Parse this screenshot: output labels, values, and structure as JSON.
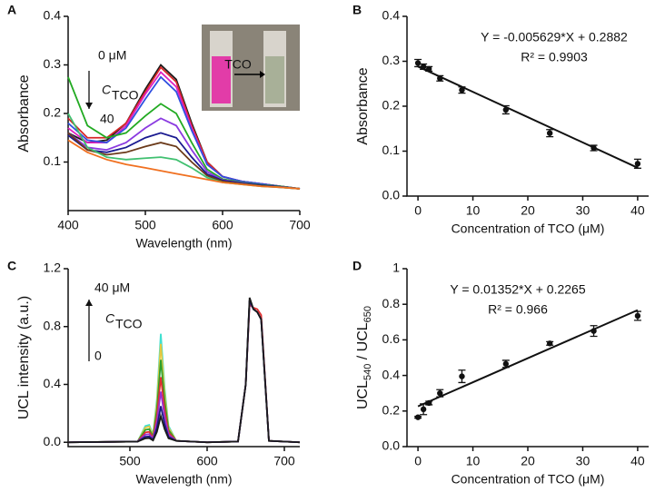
{
  "chart_data": [
    {
      "type": "line",
      "panel_label": "A",
      "xlabel": "Wavelength (nm)",
      "ylabel": [
        "Absorbance"
      ],
      "x": [
        400,
        425,
        450,
        475,
        500,
        520,
        540,
        560,
        580,
        600,
        625,
        650,
        675,
        700
      ],
      "xlim": [
        400,
        700
      ],
      "xticks": [
        400,
        500,
        600,
        700
      ],
      "ylim": [
        0,
        0.4
      ],
      "yticks": [
        0.1,
        0.2,
        0.3,
        0.4
      ],
      "annotations": [
        "0 μM",
        "C",
        "TCO",
        "40",
        "TCO"
      ],
      "series": [
        {
          "color": "#1a1a1a",
          "values": [
            0.16,
            0.14,
            0.145,
            0.18,
            0.25,
            0.3,
            0.27,
            0.18,
            0.1,
            0.07,
            0.06,
            0.055,
            0.05,
            0.045
          ]
        },
        {
          "color": "#d62728",
          "values": [
            0.19,
            0.15,
            0.15,
            0.18,
            0.245,
            0.295,
            0.265,
            0.175,
            0.1,
            0.07,
            0.06,
            0.055,
            0.05,
            0.045
          ]
        },
        {
          "color": "#e020c0",
          "values": [
            0.17,
            0.14,
            0.14,
            0.175,
            0.24,
            0.285,
            0.255,
            0.17,
            0.095,
            0.07,
            0.06,
            0.055,
            0.05,
            0.045
          ]
        },
        {
          "color": "#3050e0",
          "values": [
            0.18,
            0.145,
            0.14,
            0.17,
            0.23,
            0.275,
            0.245,
            0.165,
            0.095,
            0.07,
            0.06,
            0.055,
            0.05,
            0.045
          ]
        },
        {
          "color": "#22aa22",
          "values": [
            0.275,
            0.175,
            0.15,
            0.16,
            0.195,
            0.22,
            0.2,
            0.14,
            0.085,
            0.065,
            0.058,
            0.053,
            0.05,
            0.045
          ]
        },
        {
          "color": "#8a3ae0",
          "values": [
            0.16,
            0.13,
            0.125,
            0.14,
            0.17,
            0.19,
            0.175,
            0.125,
            0.08,
            0.063,
            0.057,
            0.052,
            0.049,
            0.045
          ]
        },
        {
          "color": "#1a1a90",
          "values": [
            0.155,
            0.125,
            0.12,
            0.13,
            0.15,
            0.16,
            0.15,
            0.11,
            0.075,
            0.062,
            0.056,
            0.052,
            0.049,
            0.045
          ]
        },
        {
          "color": "#6b3a1a",
          "values": [
            0.16,
            0.125,
            0.115,
            0.12,
            0.132,
            0.14,
            0.132,
            0.1,
            0.072,
            0.06,
            0.055,
            0.051,
            0.048,
            0.045
          ]
        },
        {
          "color": "#40c070",
          "values": [
            0.2,
            0.13,
            0.11,
            0.105,
            0.108,
            0.11,
            0.105,
            0.088,
            0.068,
            0.058,
            0.054,
            0.05,
            0.048,
            0.045
          ]
        },
        {
          "color": "#f07020",
          "values": [
            0.145,
            0.12,
            0.105,
            0.095,
            0.088,
            0.082,
            0.076,
            0.07,
            0.064,
            0.058,
            0.054,
            0.05,
            0.048,
            0.045
          ]
        }
      ]
    },
    {
      "type": "scatter",
      "panel_label": "B",
      "xlabel": "Concentration of TCO (μM)",
      "ylabel": [
        "Absorbance"
      ],
      "x": [
        0,
        1,
        2,
        4,
        8,
        16,
        24,
        32,
        40
      ],
      "values": [
        0.296,
        0.288,
        0.283,
        0.262,
        0.236,
        0.192,
        0.14,
        0.107,
        0.072
      ],
      "errors": [
        0.008,
        0.006,
        0.005,
        0.006,
        0.007,
        0.009,
        0.008,
        0.006,
        0.01
      ],
      "fit": {
        "x": [
          0,
          40
        ],
        "values": [
          0.2882,
          0.06304
        ]
      },
      "annotations": [
        "Y =  -0.005629*X + 0.2882",
        "R² = 0.9903"
      ],
      "xlim": [
        -2,
        42
      ],
      "xticks": [
        0,
        10,
        20,
        30,
        40
      ],
      "ylim": [
        0,
        0.4
      ],
      "yticks": [
        {
          "value": 0,
          "label": "0.0"
        },
        0.1,
        0.2,
        0.3,
        0.4
      ]
    },
    {
      "type": "line",
      "panel_label": "C",
      "xlabel": "Wavelength (nm)",
      "ylabel": [
        "UCL intensity (a.u.)"
      ],
      "x": [
        420,
        510,
        520,
        525,
        530,
        535,
        540,
        545,
        550,
        560,
        600,
        640,
        650,
        655,
        660,
        665,
        670,
        680,
        720
      ],
      "xlim": [
        420,
        720
      ],
      "xticks": [
        500,
        600,
        700
      ],
      "ylim": [
        -0.03,
        1.2
      ],
      "yticks": [
        {
          "value": 0,
          "label": "0.0"
        },
        0.4,
        0.8,
        1.2
      ],
      "annotations": [
        "40 μM",
        "C",
        "TCO",
        "0"
      ],
      "series": [
        {
          "color": "#40e0d0",
          "values": [
            0,
            0.005,
            0.113,
            0.12,
            0.053,
            0.3,
            0.75,
            0.375,
            0.113,
            0.01,
            0,
            0.005,
            0.4,
            0.98,
            0.92,
            0.9,
            0.85,
            0.01,
            0
          ]
        },
        {
          "color": "#e6c840",
          "values": [
            0,
            0.005,
            0.102,
            0.109,
            0.048,
            0.272,
            0.68,
            0.34,
            0.102,
            0.01,
            0,
            0.005,
            0.4,
            0.98,
            0.92,
            0.9,
            0.85,
            0.01,
            0
          ]
        },
        {
          "color": "#2ca02c",
          "values": [
            0,
            0.005,
            0.086,
            0.091,
            0.04,
            0.228,
            0.57,
            0.285,
            0.086,
            0.01,
            0,
            0.005,
            0.4,
            0.98,
            0.92,
            0.9,
            0.85,
            0.01,
            0
          ]
        },
        {
          "color": "#e03030",
          "values": [
            0,
            0.005,
            0.068,
            0.072,
            0.032,
            0.18,
            0.45,
            0.225,
            0.068,
            0.01,
            0,
            0.005,
            0.4,
            0.95,
            0.93,
            0.92,
            0.88,
            0.01,
            0
          ]
        },
        {
          "color": "#9b30d0",
          "values": [
            0,
            0.005,
            0.053,
            0.056,
            0.025,
            0.14,
            0.35,
            0.175,
            0.053,
            0.01,
            0,
            0.005,
            0.4,
            0.98,
            0.92,
            0.9,
            0.85,
            0.01,
            0
          ]
        },
        {
          "color": "#1a1a80",
          "values": [
            0,
            0.005,
            0.038,
            0.04,
            0.018,
            0.1,
            0.25,
            0.125,
            0.038,
            0.01,
            0,
            0.005,
            0.4,
            0.98,
            0.92,
            0.9,
            0.85,
            0.01,
            0
          ]
        },
        {
          "color": "#1a1a1a",
          "values": [
            0,
            0.005,
            0.027,
            0.029,
            0.013,
            0.072,
            0.18,
            0.09,
            0.027,
            0.01,
            0,
            0.005,
            0.4,
            1.0,
            0.92,
            0.9,
            0.85,
            0.01,
            0
          ]
        }
      ]
    },
    {
      "type": "scatter",
      "panel_label": "D",
      "xlabel": "Concentration of TCO (μM)",
      "ylabel": [
        "UCL",
        "540",
        " / UCL",
        "650"
      ],
      "x": [
        0,
        1,
        2,
        4,
        8,
        16,
        24,
        32,
        40
      ],
      "values": [
        0.165,
        0.21,
        0.245,
        0.3,
        0.395,
        0.465,
        0.58,
        0.65,
        0.735
      ],
      "errors": [
        0.005,
        0.03,
        0.01,
        0.02,
        0.035,
        0.02,
        0.01,
        0.03,
        0.025
      ],
      "fit": {
        "x": [
          0,
          40
        ],
        "values": [
          0.2265,
          0.7673
        ]
      },
      "annotations": [
        "Y = 0.01352*X + 0.2265",
        "R² = 0.966"
      ],
      "xlim": [
        -2,
        42
      ],
      "xticks": [
        0,
        10,
        20,
        30,
        40
      ],
      "ylim": [
        0,
        1.0
      ],
      "yticks": [
        {
          "value": 0,
          "label": "0.0"
        },
        0.2,
        0.4,
        0.6,
        0.8,
        1.0
      ]
    }
  ]
}
